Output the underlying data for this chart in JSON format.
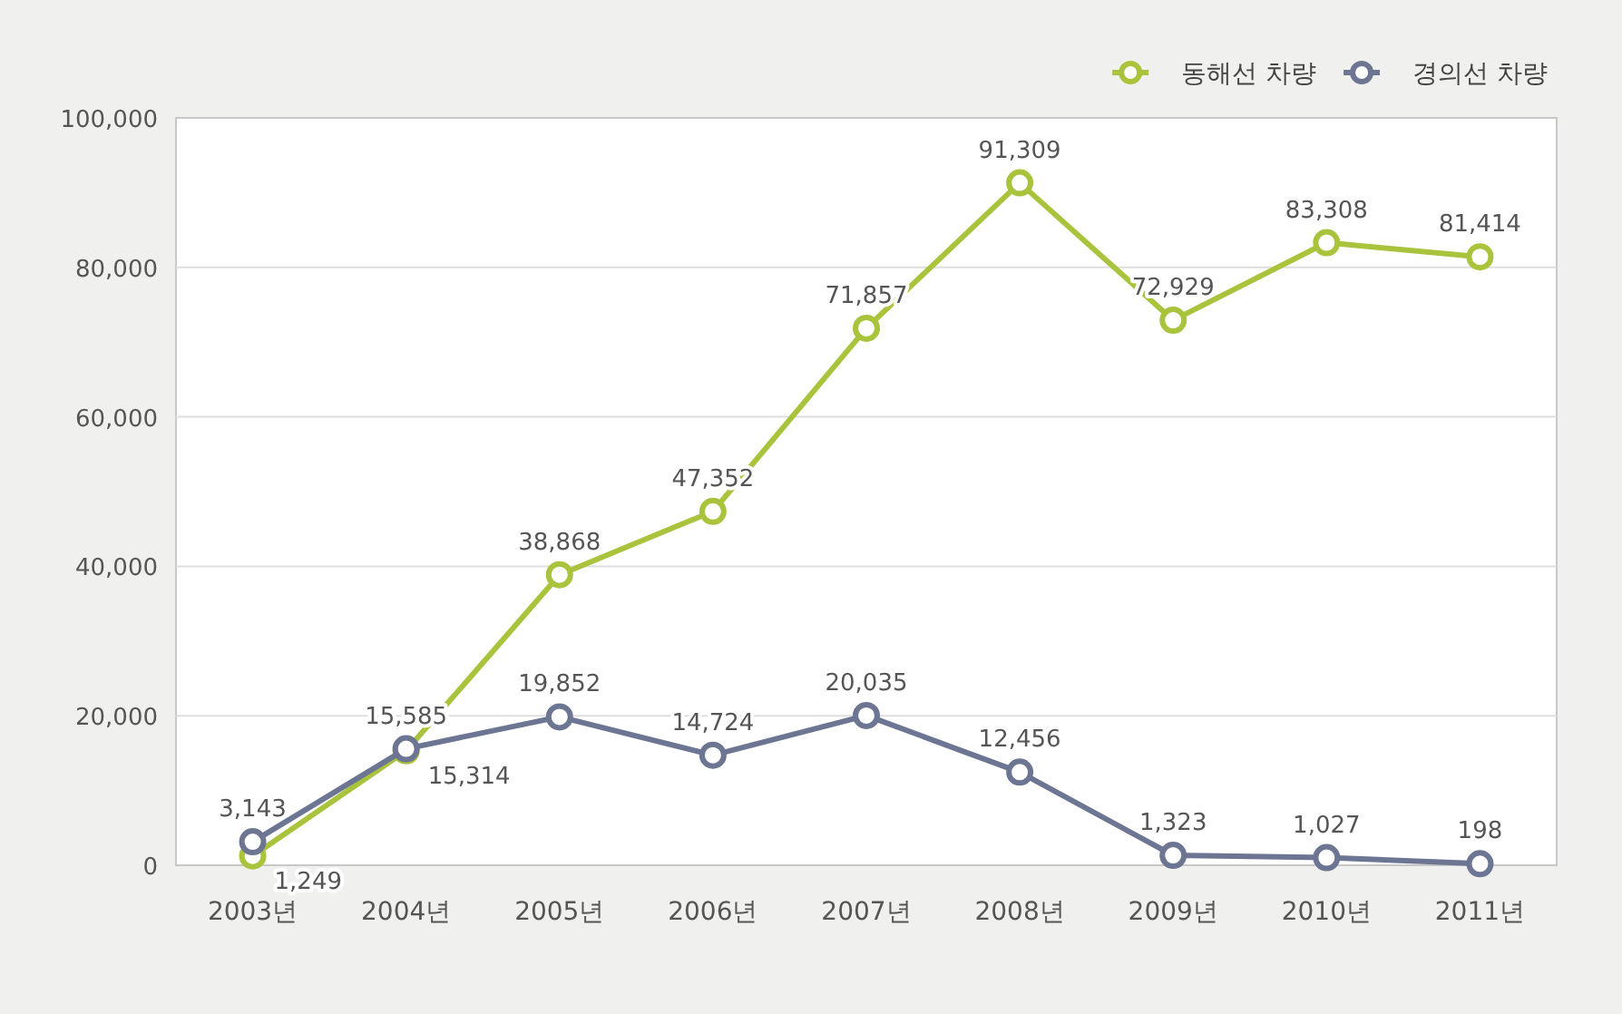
{
  "chart_data": {
    "type": "line",
    "categories": [
      "2003년",
      "2004년",
      "2005년",
      "2006년",
      "2007년",
      "2008년",
      "2009년",
      "2010년",
      "2011년"
    ],
    "series": [
      {
        "name": "동해선 차량",
        "color": "#a9c43c",
        "values": [
          1249,
          15314,
          38868,
          47352,
          71857,
          91309,
          72929,
          83308,
          81414
        ],
        "value_labels": [
          "1,249",
          "15,314",
          "38,868",
          "47,352",
          "71,857",
          "91,309",
          "72,929",
          "83,308",
          "81,414"
        ]
      },
      {
        "name": "경의선 차량",
        "color": "#6c7592",
        "values": [
          3143,
          15585,
          19852,
          14724,
          20035,
          12456,
          1323,
          1027,
          198
        ],
        "value_labels": [
          "3,143",
          "15,585",
          "19,852",
          "14,724",
          "20,035",
          "12,456",
          "1,323",
          "1,027",
          "198"
        ]
      }
    ],
    "ylim": [
      0,
      100000
    ],
    "yticks": [
      {
        "value": 0,
        "label": "0"
      },
      {
        "value": 20000,
        "label": "20,000"
      },
      {
        "value": 40000,
        "label": "40,000"
      },
      {
        "value": 60000,
        "label": "60,000"
      },
      {
        "value": 80000,
        "label": "80,000"
      },
      {
        "value": 100000,
        "label": "100,000"
      }
    ],
    "grid": "y",
    "legend": "top right",
    "marker": "circle"
  }
}
